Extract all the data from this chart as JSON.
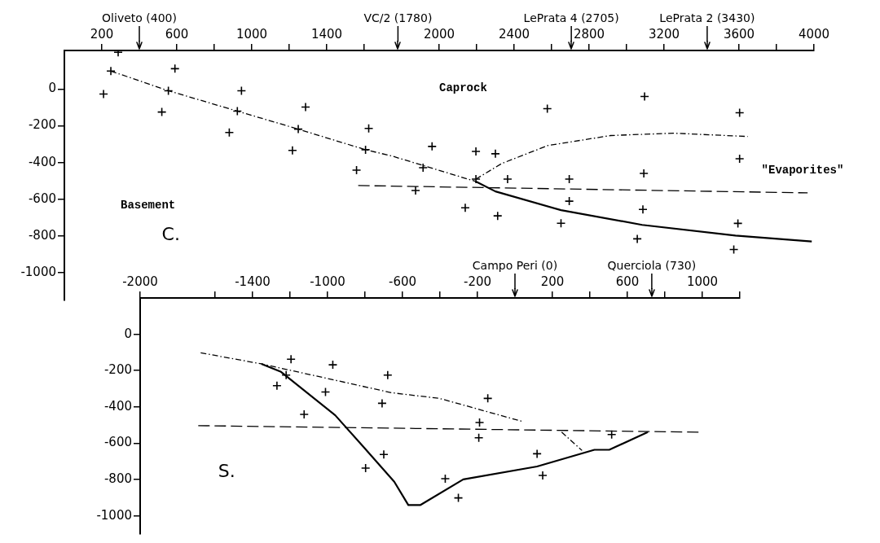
{
  "chart_data": [
    {
      "type": "scatter",
      "title": "C.",
      "xlim": [
        0,
        4000
      ],
      "ylim": [
        -1150,
        210
      ],
      "grid": false,
      "legend": false,
      "marker": "cross",
      "xticks": [
        {
          "value": 200,
          "label": "200"
        },
        {
          "value": 600,
          "label": "600"
        },
        {
          "value": 800,
          "label": null
        },
        {
          "value": 1000,
          "label": "1000"
        },
        {
          "value": 1200,
          "label": null
        },
        {
          "value": 1400,
          "label": "1400"
        },
        {
          "value": 1600,
          "label": null
        },
        {
          "value": 2000,
          "label": "2000"
        },
        {
          "value": 2200,
          "label": null
        },
        {
          "value": 2400,
          "label": "2400"
        },
        {
          "value": 2600,
          "label": null
        },
        {
          "value": 2800,
          "label": "2800"
        },
        {
          "value": 3000,
          "label": null
        },
        {
          "value": 3200,
          "label": "3200"
        },
        {
          "value": 3600,
          "label": "3600"
        },
        {
          "value": 3800,
          "label": null
        },
        {
          "value": 4000,
          "label": "4000"
        }
      ],
      "yticks": [
        0,
        -200,
        -400,
        -600,
        -800,
        -1000
      ],
      "ref_lines": [
        {
          "axis": "x",
          "value": 400,
          "label": "Oliveto (400)"
        },
        {
          "axis": "x",
          "value": 1780,
          "label": "VC/2 (1780)"
        },
        {
          "axis": "x",
          "value": 2705,
          "label": "LePrata 4 (2705)"
        },
        {
          "axis": "x",
          "value": 3430,
          "label": "LePrata 2 (3430)"
        }
      ],
      "annotations": [
        "Caprock",
        "Basement",
        "\"Evaporites\""
      ],
      "series": [
        {
          "color": "#000000",
          "x": [
            287,
            248,
            209,
            590,
            555,
            520,
            945,
            923,
            880,
            1287,
            1248,
            1217,
            1624,
            1607,
            1559,
            1962,
            1914,
            1874,
            2577,
            2196,
            2300,
            2196,
            2365,
            2694,
            2139,
            2312,
            2694,
            2650,
            3096,
            3092,
            3087,
            3057,
            3603,
            3603,
            3594,
            3572
          ],
          "values": [
            200,
            98,
            -27,
            111,
            -9,
            -125,
            -9,
            -120,
            -236,
            -98,
            -218,
            -334,
            -214,
            -330,
            -441,
            -312,
            -428,
            -552,
            -107,
            -339,
            -352,
            -490,
            -490,
            -490,
            -646,
            -690,
            -610,
            -730,
            -40,
            -459,
            -655,
            -815,
            -129,
            -379,
            -731,
            -873
          ]
        },
        {
          "type": "line",
          "color": "#000000",
          "marker": "none",
          "line_style": "dotted",
          "x": [
            248,
            555,
            923,
            1248,
            1607,
            1750,
            2196
          ],
          "values": [
            98,
            -9,
            -120,
            -218,
            -330,
            -365,
            -503
          ]
        },
        {
          "type": "line",
          "color": "#000000",
          "marker": "none",
          "line_style": "solid",
          "x": [
            2196,
            2300,
            2650,
            3083,
            3581,
            3988
          ],
          "values": [
            -503,
            -557,
            -659,
            -739,
            -797,
            -829
          ]
        },
        {
          "type": "line",
          "color": "#000000",
          "marker": "none",
          "line_style": "dotted",
          "x": [
            2196,
            2334,
            2581,
            2914,
            3248,
            3646
          ],
          "values": [
            -490,
            -405,
            -307,
            -253,
            -240,
            -258
          ]
        },
        {
          "type": "line",
          "color": "#000000",
          "marker": "none",
          "line_style": "dashed",
          "x": [
            1568,
            3966
          ],
          "values": [
            -525,
            -565
          ]
        }
      ]
    },
    {
      "type": "scatter",
      "title": "S.",
      "xlim": [
        -2000,
        1200
      ],
      "ylim": [
        -1100,
        200
      ],
      "grid": false,
      "legend": false,
      "marker": "cross",
      "xticks": [
        {
          "value": -2000,
          "label": "-2000"
        },
        {
          "value": -1600,
          "label": null
        },
        {
          "value": -1400,
          "label": "-1400"
        },
        {
          "value": -1200,
          "label": null
        },
        {
          "value": -1000,
          "label": "-1000"
        },
        {
          "value": -800,
          "label": null
        },
        {
          "value": -600,
          "label": "-600"
        },
        {
          "value": -400,
          "label": null
        },
        {
          "value": -200,
          "label": "-200"
        },
        {
          "value": 200,
          "label": "200"
        },
        {
          "value": 400,
          "label": null
        },
        {
          "value": 600,
          "label": "600"
        },
        {
          "value": 800,
          "label": null
        },
        {
          "value": 1000,
          "label": "1000"
        },
        {
          "value": 1200,
          "label": null
        }
      ],
      "yticks": [
        0,
        -200,
        -400,
        -600,
        -800,
        -1000
      ],
      "ref_lines": [
        {
          "axis": "x",
          "value": 0,
          "label": "Campo Peri (0)"
        },
        {
          "axis": "x",
          "value": 730,
          "label": "Querciola (730)"
        }
      ],
      "series": [
        {
          "color": "#000000",
          "x": [
            -1195,
            -1221,
            -1270,
            -972,
            -1011,
            -1125,
            -679,
            -709,
            -700,
            -797,
            -145,
            -189,
            -193,
            -372,
            -302,
            118,
            148,
            516
          ],
          "values": [
            -137,
            -225,
            -283,
            -168,
            -318,
            -441,
            -225,
            -380,
            -662,
            -737,
            -353,
            -486,
            -570,
            -795,
            -901,
            -658,
            -777,
            -552
          ]
        },
        {
          "type": "line",
          "color": "#000000",
          "marker": "none",
          "line_style": "dotted",
          "x": [
            -1677,
            -1353,
            -657,
            -403,
            43
          ],
          "values": [
            -102,
            -163,
            -322,
            -353,
            -481
          ]
        },
        {
          "type": "line",
          "color": "#000000",
          "marker": "none",
          "line_style": "solid",
          "x": [
            -1353,
            -1248,
            -959,
            -810,
            -644,
            -569,
            -504,
            -276,
            118,
            424,
            503,
            709
          ],
          "values": [
            -163,
            -207,
            -446,
            -618,
            -812,
            -940,
            -940,
            -799,
            -728,
            -636,
            -636,
            -539
          ]
        },
        {
          "type": "line",
          "color": "#000000",
          "marker": "none",
          "line_style": "dotted",
          "x": [
            249,
            358
          ],
          "values": [
            -539,
            -640
          ]
        },
        {
          "type": "line",
          "color": "#000000",
          "marker": "none",
          "line_style": "dashed",
          "x": [
            -1690,
            980
          ],
          "values": [
            -503,
            -539
          ]
        }
      ]
    }
  ]
}
